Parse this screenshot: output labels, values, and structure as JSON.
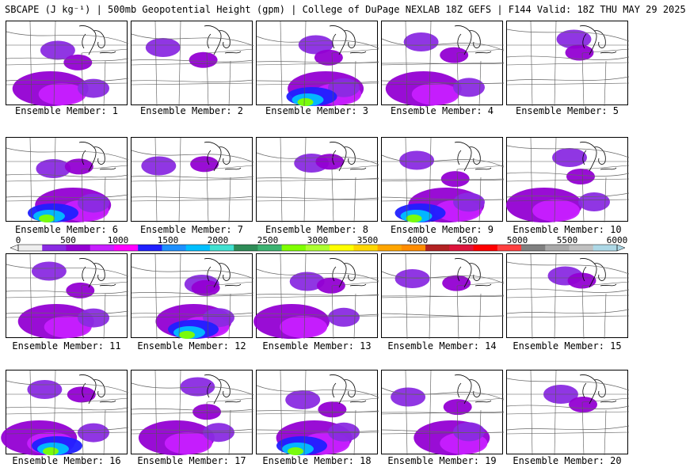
{
  "header": {
    "title": "SBCAPE (J kg⁻¹) | 500mb Geopotential Height (gpm) | College of DuPage NEXLAB 18Z GEFS | F144 Valid: 18Z THU MAY 29 2025"
  },
  "members": [
    {
      "label": "Ensemble Member: 1",
      "intensity": 2
    },
    {
      "label": "Ensemble Member: 2",
      "intensity": 1
    },
    {
      "label": "Ensemble Member: 3",
      "intensity": 3
    },
    {
      "label": "Ensemble Member: 4",
      "intensity": 2
    },
    {
      "label": "Ensemble Member: 5",
      "intensity": 1
    },
    {
      "label": "Ensemble Member: 6",
      "intensity": 3
    },
    {
      "label": "Ensemble Member: 7",
      "intensity": 1
    },
    {
      "label": "Ensemble Member: 8",
      "intensity": 1
    },
    {
      "label": "Ensemble Member: 9",
      "intensity": 3
    },
    {
      "label": "Ensemble Member: 10",
      "intensity": 2
    },
    {
      "label": "Ensemble Member: 11",
      "intensity": 2
    },
    {
      "label": "Ensemble Member: 12",
      "intensity": 3
    },
    {
      "label": "Ensemble Member: 13",
      "intensity": 2
    },
    {
      "label": "Ensemble Member: 14",
      "intensity": 1
    },
    {
      "label": "Ensemble Member: 15",
      "intensity": 1
    },
    {
      "label": "Ensemble Member: 16",
      "intensity": 3
    },
    {
      "label": "Ensemble Member: 17",
      "intensity": 2
    },
    {
      "label": "Ensemble Member: 18",
      "intensity": 3
    },
    {
      "label": "Ensemble Member: 19",
      "intensity": 2
    },
    {
      "label": "Ensemble Member: 20",
      "intensity": 1
    }
  ],
  "colorbar": {
    "labels": [
      "0",
      "500",
      "1000",
      "1500",
      "2000",
      "2500",
      "3000",
      "3500",
      "4000",
      "4500",
      "5000",
      "5500",
      "6000"
    ],
    "colors": [
      "#eeeeee",
      "#8a2be2",
      "#9400d3",
      "#c71fff",
      "#ff00ff",
      "#2020ff",
      "#1e90ff",
      "#00bfff",
      "#40e0d0",
      "#2e8b57",
      "#3cb371",
      "#7fff00",
      "#adff2f",
      "#ffff00",
      "#ffd700",
      "#ffa500",
      "#ff8c00",
      "#b22222",
      "#dc143c",
      "#ff0000",
      "#ff4040",
      "#808080",
      "#a9a9a9",
      "#c0c0c0",
      "#add8e6"
    ]
  }
}
